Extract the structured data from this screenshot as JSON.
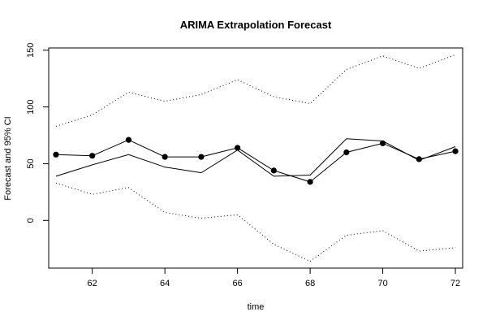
{
  "chart_data": {
    "type": "line",
    "title": "ARIMA Extrapolation Forecast",
    "xlabel": "time",
    "ylabel": "Forecast and 95% CI",
    "xlim": [
      60.8,
      72.2
    ],
    "ylim": [
      -42,
      152
    ],
    "x_ticks": [
      62,
      64,
      66,
      68,
      70,
      72
    ],
    "y_ticks": [
      0,
      50,
      100,
      150
    ],
    "x": [
      61,
      62,
      63,
      64,
      65,
      66,
      67,
      68,
      69,
      70,
      71,
      72
    ],
    "series": [
      {
        "style": "solid",
        "values": [
          39,
          49,
          58,
          47,
          42,
          62,
          39,
          40,
          72,
          70,
          53,
          65
        ]
      },
      {
        "style": "points-line",
        "values": [
          58,
          57,
          71,
          56,
          56,
          64,
          44,
          34,
          60,
          68,
          54,
          61
        ]
      },
      {
        "style": "dotted",
        "values": [
          83,
          93,
          113,
          105,
          111,
          124,
          109,
          103,
          133,
          145,
          134,
          146
        ]
      },
      {
        "style": "dotted",
        "values": [
          33,
          23,
          29,
          7,
          2,
          5,
          -21,
          -36,
          -13,
          -9,
          -27,
          -24
        ]
      }
    ]
  }
}
